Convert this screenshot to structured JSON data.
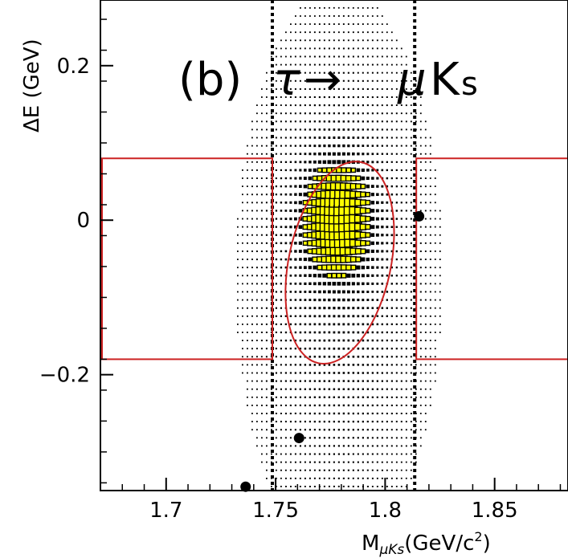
{
  "chart_data": {
    "type": "scatter",
    "title": "(b) τ → μK_s",
    "panel_label": "(b)",
    "decay_parent": "τ",
    "decay_arrow": "→",
    "decay_product_mu": "μ",
    "decay_product_k": "K",
    "decay_product_k_sub": "s",
    "xlabel": "M_μKs(GeV/c²)",
    "xlabel_main": "M",
    "xlabel_sub": "μKs",
    "xlabel_units": "(GeV/c",
    "xlabel_units_sup": "2",
    "xlabel_units_close": ")",
    "ylabel": "ΔE (GeV)",
    "xlim": [
      1.67,
      1.8835
    ],
    "ylim": [
      -0.35,
      0.285
    ],
    "x_ticks": [
      {
        "value": 1.7,
        "label": "1.7"
      },
      {
        "value": 1.75,
        "label": "1.75"
      },
      {
        "value": 1.8,
        "label": "1.8"
      },
      {
        "value": 1.85,
        "label": "1.85"
      }
    ],
    "y_ticks": [
      {
        "value": 0.2,
        "label": "0.2"
      },
      {
        "value": 0.0,
        "label": "0"
      },
      {
        "value": -0.2,
        "label": "−0.2"
      }
    ],
    "blind_region_x": [
      1.7485,
      1.8135
    ],
    "sideband_boxes": [
      {
        "name": "left-sideband",
        "x": [
          1.67,
          1.7485
        ],
        "y": [
          -0.18,
          0.08
        ],
        "color": "#cc2222"
      },
      {
        "name": "right-sideband",
        "x": [
          1.8135,
          1.8835
        ],
        "y": [
          -0.18,
          0.08
        ],
        "color": "#cc2222"
      }
    ],
    "signal_ellipse": {
      "center_x": 1.7793,
      "center_y": -0.055,
      "semi_x": 0.0233,
      "semi_y": 0.133,
      "tilt_deg": 12,
      "color": "#cc2222"
    },
    "signal_mc": {
      "center_x": 1.778,
      "center_y": 0.0,
      "sigma_x": 0.0095,
      "sigma_y": 0.045,
      "color": "#ffff00"
    },
    "data_events": [
      {
        "x": 1.8155,
        "y": 0.005
      },
      {
        "x": 1.7607,
        "y": -0.282
      },
      {
        "x": 1.7363,
        "y": -0.345
      }
    ]
  }
}
